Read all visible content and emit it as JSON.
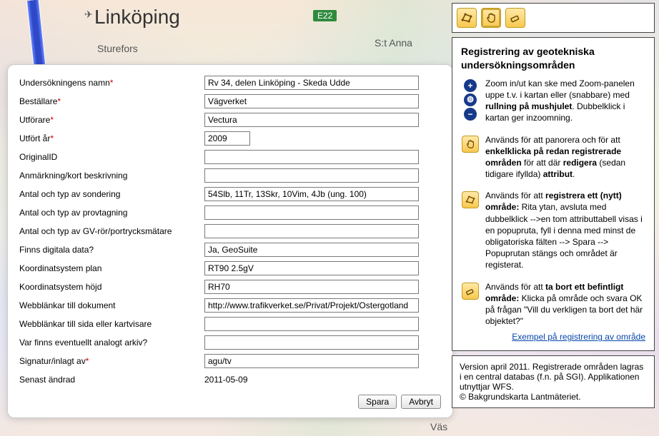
{
  "map": {
    "city": "Linköping",
    "airport_glyph": "✈",
    "e22": "E22",
    "sturefors": "Sturefors",
    "stanna": "S:t Anna",
    "vast": "Väs"
  },
  "form": {
    "fields": {
      "name": {
        "label": "Undersökningens namn",
        "required": true,
        "value": "Rv 34, delen Linköping - Skeda Udde"
      },
      "client": {
        "label": "Beställare",
        "required": true,
        "value": "Vägverket"
      },
      "performer": {
        "label": "Utförare",
        "required": true,
        "value": "Vectura"
      },
      "year": {
        "label": "Utfört år",
        "required": true,
        "value": "2009",
        "short": true
      },
      "origid": {
        "label": "OriginalID",
        "required": false,
        "value": ""
      },
      "note": {
        "label": "Anmärkning/kort beskrivning",
        "required": false,
        "value": ""
      },
      "sond": {
        "label": "Antal och typ av sondering",
        "required": false,
        "value": "54Slb, 11Tr, 13Skr, 10Vim, 4Jb (ung. 100)"
      },
      "prov": {
        "label": "Antal och typ av provtagning",
        "required": false,
        "value": ""
      },
      "gvror": {
        "label": "Antal och typ av GV-rör/portrycksmätare",
        "required": false,
        "value": ""
      },
      "digital": {
        "label": "Finns digitala data?",
        "required": false,
        "value": "Ja, GeoSuite"
      },
      "coord_plan": {
        "label": "Koordinatsystem plan",
        "required": false,
        "value": "RT90 2.5gV"
      },
      "coord_hojd": {
        "label": "Koordinatsystem höjd",
        "required": false,
        "value": "RH70"
      },
      "link_doc": {
        "label": "Webblänkar till dokument",
        "required": false,
        "value": "http://www.trafikverket.se/Privat/Projekt/Ostergotland"
      },
      "link_page": {
        "label": "Webblänkar till sida eller kartvisare",
        "required": false,
        "value": ""
      },
      "analog": {
        "label": "Var finns eventuellt analogt arkiv?",
        "required": false,
        "value": ""
      },
      "sign": {
        "label": "Signatur/inlagt av",
        "required": true,
        "value": "agu/tv"
      }
    },
    "last_changed_label": "Senast ändrad",
    "last_changed_value": "2011-05-09",
    "save": "Spara",
    "cancel": "Avbryt"
  },
  "side": {
    "heading": "Registrering av geotekniska undersökningsområden",
    "zoom_html": "Zoom in/ut kan ske med Zoom-panelen uppe t.v. i kartan eller (snabbare) med <b>rullning på mushjulet</b>. Dubbelklick i kartan ger inzoomning.",
    "pan_html": "Används för att panorera och för att <b>enkelklicka på redan registrerade områden</b> för att där <b>redigera</b> (sedan tidigare ifyllda) <b>attribut</b>.",
    "draw_html": "Används för att <b>registrera ett (nytt) område:</b> Rita ytan, avsluta med dubbelklick --&gt;en tom attributtabell visas i en popupruta, fyll i denna med minst de obligatoriska fälten --&gt; Spara --&gt; Popuprutan stängs och området är registerat.",
    "erase_html": "Används för att <b>ta bort ett befintligt område:</b> Klicka på område och svara OK på frågan \"Vill du verkligen ta bort det här objektet?\"",
    "example_link": "Exempel på registrering av område",
    "footer_1": "Version april 2011. Registrerade områden lagras i en central databas (f.n. på SGI). Applikationen utnyttjar WFS.",
    "footer_2": "© Bakgrundskarta Lantmäteriet."
  }
}
